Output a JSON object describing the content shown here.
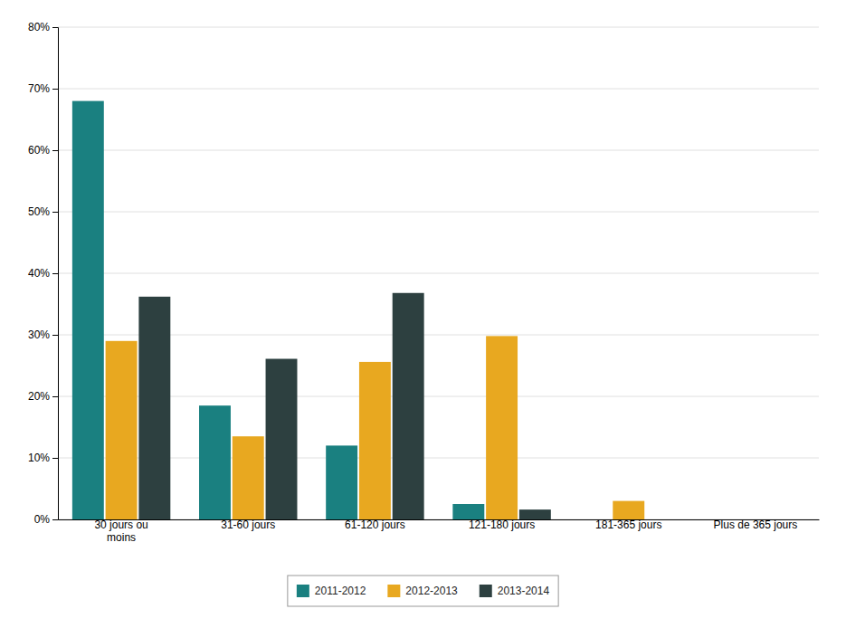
{
  "chart_data": {
    "type": "bar",
    "categories": [
      "30 jours ou\nmoins",
      "31-60 jours",
      "61-120 jours",
      "121-180 jours",
      "181-365 jours",
      "Plus de 365 jours"
    ],
    "series": [
      {
        "name": "2011-2012",
        "color": "#1a8080",
        "values": [
          0.68,
          0.185,
          0.12,
          0.025,
          0.0,
          0.0
        ]
      },
      {
        "name": "2012-2013",
        "color": "#e8a820",
        "values": [
          0.29,
          0.135,
          0.256,
          0.298,
          0.03,
          0.0
        ]
      },
      {
        "name": "2013-2014",
        "color": "#2d4040",
        "values": [
          0.362,
          0.261,
          0.368,
          0.016,
          0.0,
          0.0
        ]
      }
    ],
    "ylim": [
      0,
      0.8
    ],
    "yticks": [
      {
        "value": 0.0,
        "label": "0%"
      },
      {
        "value": 0.1,
        "label": "10%"
      },
      {
        "value": 0.2,
        "label": "20%"
      },
      {
        "value": 0.3,
        "label": "30%"
      },
      {
        "value": 0.4,
        "label": "40%"
      },
      {
        "value": 0.5,
        "label": "50%"
      },
      {
        "value": 0.6,
        "label": "60%"
      },
      {
        "value": 0.7,
        "label": "70%"
      },
      {
        "value": 0.8,
        "label": "80%"
      }
    ],
    "grid": true,
    "legend": "bottom"
  }
}
